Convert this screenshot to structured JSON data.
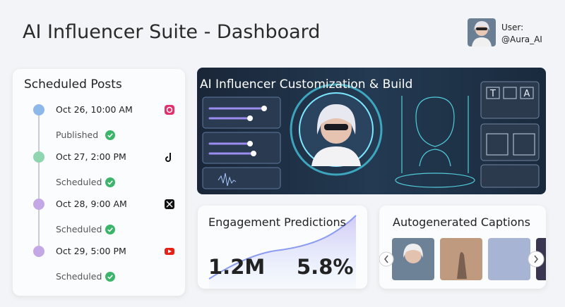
{
  "header": {
    "title": "AI Influencer Suite - Dashboard",
    "user_label": "User:",
    "username": "@Aura_AI"
  },
  "scheduled_posts": {
    "title": "Scheduled Posts",
    "posts": [
      {
        "datetime": "Oct 26, 10:00 AM",
        "status": "Published"
      },
      {
        "datetime": "Oct 27, 2:00 PM",
        "status": "Scheduled"
      },
      {
        "datetime": "Oct 28, 9:00 AM",
        "status": "Scheduled"
      },
      {
        "datetime": "Oct 29, 5:00 PM",
        "status": "Scheduled"
      }
    ]
  },
  "customization": {
    "title": "AI Influencer Customization & Build",
    "tool_labels": [
      "T",
      "A"
    ]
  },
  "engagement": {
    "title": "Engagement Predictions",
    "metrics": [
      "1.2M",
      "5.8%"
    ]
  },
  "captions": {
    "title": "Autogenerated Captions"
  }
}
